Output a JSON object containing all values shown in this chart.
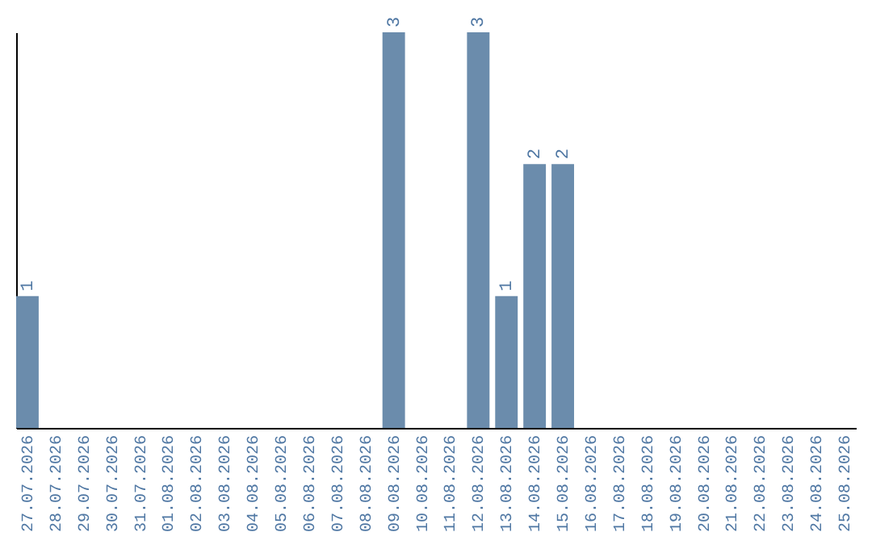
{
  "chart_data": {
    "type": "bar",
    "categories": [
      "27.07.2026",
      "28.07.2026",
      "29.07.2026",
      "30.07.2026",
      "31.07.2026",
      "01.08.2026",
      "02.08.2026",
      "03.08.2026",
      "04.08.2026",
      "05.08.2026",
      "06.08.2026",
      "07.08.2026",
      "08.08.2026",
      "09.08.2026",
      "10.08.2026",
      "11.08.2026",
      "12.08.2026",
      "13.08.2026",
      "14.08.2026",
      "15.08.2026",
      "16.08.2026",
      "17.08.2026",
      "18.08.2026",
      "19.08.2026",
      "20.08.2026",
      "21.08.2026",
      "22.08.2026",
      "23.08.2026",
      "24.08.2026",
      "25.08.2026"
    ],
    "values": [
      1,
      0,
      0,
      0,
      0,
      0,
      0,
      0,
      0,
      0,
      0,
      0,
      0,
      3,
      0,
      0,
      3,
      1,
      2,
      2,
      0,
      0,
      0,
      0,
      0,
      0,
      0,
      0,
      0,
      0
    ],
    "value_labels": [
      "1",
      null,
      null,
      null,
      null,
      null,
      null,
      null,
      null,
      null,
      null,
      null,
      null,
      "3",
      null,
      null,
      "3",
      "1",
      "2",
      "2",
      null,
      null,
      null,
      null,
      null,
      null,
      null,
      null,
      null,
      null
    ],
    "color": "#6b8cac",
    "ylim": [
      0,
      3
    ],
    "tick_labels": "x",
    "grid": false
  }
}
